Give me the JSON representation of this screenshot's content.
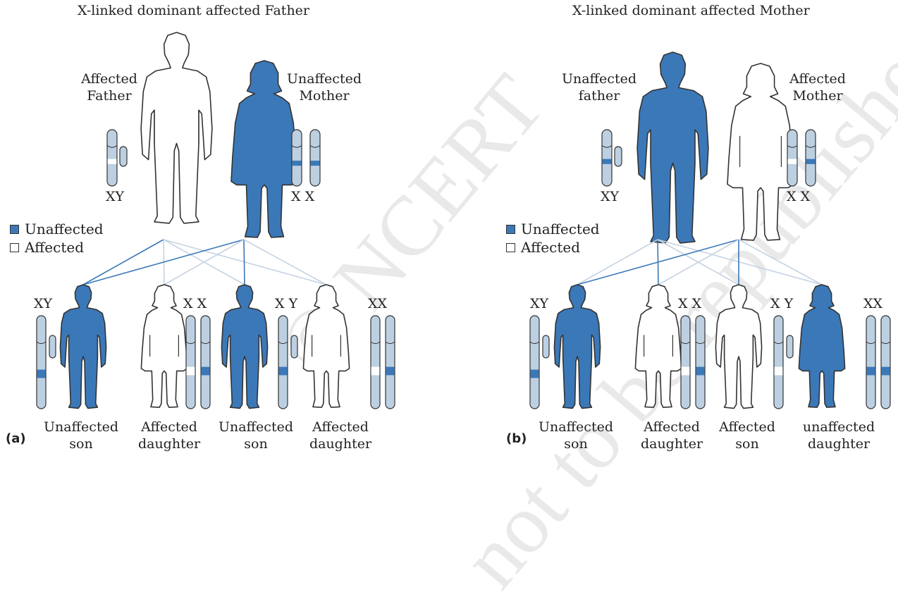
{
  "colors": {
    "filled": "#3b78b8",
    "unfilled": "#ffffff",
    "chromosome": "#bcd0e2",
    "band": "#3b78b8",
    "line_strong": "#3b78b8",
    "line_light": "#c5d3e2",
    "outline": "#333333"
  },
  "watermark": {
    "line1": "© NCERT",
    "line2": "not to be republished"
  },
  "panels": [
    {
      "letter": "(a)",
      "title": "X-linked dominant affected Father",
      "parent_left": {
        "label1": "Affected",
        "label2": "Father",
        "genotype": "XY",
        "filled": false
      },
      "parent_right": {
        "label1": "Unaffected",
        "label2": "Mother",
        "genotype": "X X",
        "filled": true
      },
      "legend": {
        "filled_label": "Unaffected",
        "empty_label": "Affected"
      },
      "children": [
        {
          "label1": "Unaffected",
          "label2": "son",
          "genotype": "XY",
          "filled": true,
          "sex": "male"
        },
        {
          "label1": "Affected",
          "label2": "daughter",
          "genotype": "X X",
          "filled": false,
          "sex": "female"
        },
        {
          "label1": "Unaffected",
          "label2": "son",
          "genotype": "X Y",
          "filled": true,
          "sex": "male"
        },
        {
          "label1": "Affected",
          "label2": "daughter",
          "genotype": "XX",
          "filled": false,
          "sex": "female"
        }
      ]
    },
    {
      "letter": "(b)",
      "title": "X-linked dominant affected Mother",
      "parent_left": {
        "label1": "Unaffected",
        "label2": "father",
        "genotype": "XY",
        "filled": true
      },
      "parent_right": {
        "label1": "Affected",
        "label2": "Mother",
        "genotype": "X X",
        "filled": false
      },
      "legend": {
        "filled_label": "Unaffected",
        "empty_label": "Affected"
      },
      "children": [
        {
          "label1": "Unaffected",
          "label2": "son",
          "genotype": "XY",
          "filled": true,
          "sex": "male"
        },
        {
          "label1": "Affected",
          "label2": "daughter",
          "genotype": "X X",
          "filled": false,
          "sex": "female"
        },
        {
          "label1": "Affected",
          "label2": "son",
          "genotype": "X Y",
          "filled": false,
          "sex": "male"
        },
        {
          "label1": "unaffected",
          "label2": "daughter",
          "genotype": "XX",
          "filled": true,
          "sex": "female"
        }
      ]
    }
  ]
}
